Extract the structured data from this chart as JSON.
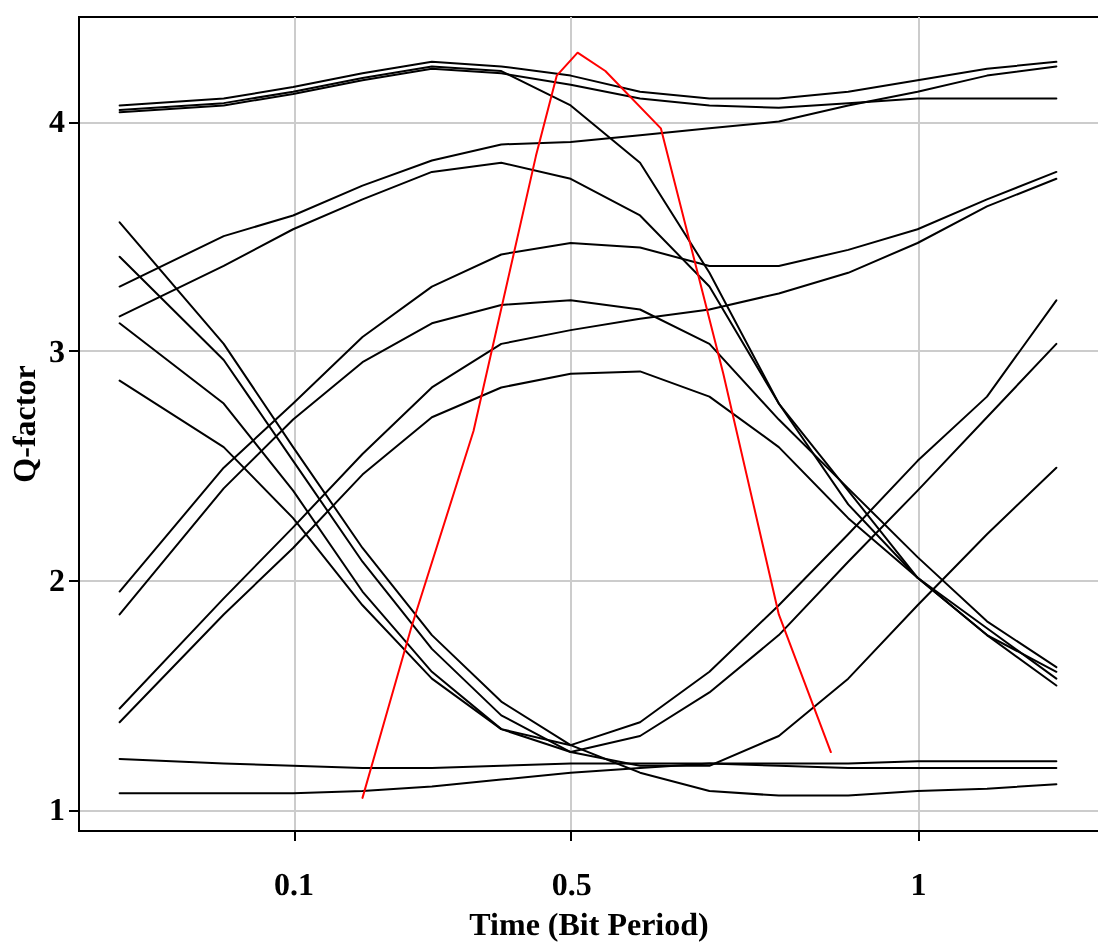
{
  "chart_data": {
    "type": "line",
    "xlabel": "Time (Bit Period)",
    "ylabel": "Q-factor",
    "x": [
      -0.15,
      0,
      0.1,
      0.2,
      0.3,
      0.4,
      0.5,
      0.6,
      0.7,
      0.8,
      0.9,
      1.0,
      1.1,
      1.2
    ],
    "xlim": [
      -0.21,
      1.26
    ],
    "xticks": [
      0.1,
      0.5,
      1
    ],
    "ylim": [
      0.91,
      4.46
    ],
    "yticks": [
      1,
      2,
      3,
      4
    ],
    "grid": true,
    "legend": false,
    "marker": "none",
    "line_style": "solid",
    "series": [
      {
        "color": "#000000",
        "values": [
          4.07,
          4.1,
          4.15,
          4.21,
          4.26,
          4.24,
          4.2,
          4.13,
          4.1,
          4.1,
          4.13,
          4.18,
          4.23,
          4.26
        ]
      },
      {
        "color": "#000000",
        "values": [
          4.04,
          4.07,
          4.12,
          4.18,
          4.23,
          4.21,
          4.16,
          4.1,
          4.07,
          4.06,
          4.08,
          4.1,
          4.1,
          4.1
        ]
      },
      {
        "color": "#000000",
        "values": [
          4.05,
          4.08,
          4.13,
          4.19,
          4.24,
          4.22,
          4.07,
          3.82,
          3.34,
          2.77,
          2.33,
          2.01,
          1.79,
          1.57
        ]
      },
      {
        "color": "#000000",
        "values": [
          3.28,
          3.5,
          3.59,
          3.72,
          3.83,
          3.9,
          3.91,
          3.94,
          3.97,
          4.0,
          4.07,
          4.13,
          4.2,
          4.24
        ]
      },
      {
        "color": "#000000",
        "values": [
          3.15,
          3.37,
          3.53,
          3.66,
          3.78,
          3.82,
          3.75,
          3.59,
          3.28,
          2.77,
          2.39,
          2.01,
          1.76,
          1.6
        ]
      },
      {
        "color": "#000000",
        "values": [
          1.95,
          2.49,
          2.77,
          3.06,
          3.28,
          3.42,
          3.47,
          3.45,
          3.37,
          3.37,
          3.44,
          3.53,
          3.66,
          3.78
        ]
      },
      {
        "color": "#000000",
        "values": [
          1.85,
          2.4,
          2.7,
          2.95,
          3.12,
          3.2,
          3.22,
          3.18,
          3.03,
          2.7,
          2.4,
          2.1,
          1.82,
          1.62
        ]
      },
      {
        "color": "#000000",
        "values": [
          1.38,
          1.85,
          2.14,
          2.46,
          2.71,
          2.84,
          2.9,
          2.91,
          2.8,
          2.58,
          2.27,
          2.01,
          1.76,
          1.54
        ]
      },
      {
        "color": "#000000",
        "values": [
          1.44,
          1.92,
          2.23,
          2.55,
          2.84,
          3.03,
          3.09,
          3.14,
          3.18,
          3.25,
          3.34,
          3.47,
          3.63,
          3.75
        ]
      },
      {
        "color": "#000000",
        "values": [
          3.56,
          3.03,
          2.58,
          2.14,
          1.76,
          1.47,
          1.28,
          1.16,
          1.08,
          1.06,
          1.06,
          1.08,
          1.09,
          1.11
        ]
      },
      {
        "color": "#000000",
        "values": [
          3.41,
          2.96,
          2.52,
          2.08,
          1.7,
          1.41,
          1.25,
          1.19,
          1.19,
          1.32,
          1.57,
          1.89,
          2.2,
          2.49
        ]
      },
      {
        "color": "#000000",
        "values": [
          2.87,
          2.58,
          2.27,
          1.89,
          1.57,
          1.35,
          1.25,
          1.32,
          1.51,
          1.76,
          2.08,
          2.39,
          2.71,
          3.03
        ]
      },
      {
        "color": "#000000",
        "values": [
          3.12,
          2.77,
          2.39,
          1.95,
          1.6,
          1.35,
          1.28,
          1.38,
          1.6,
          1.89,
          2.2,
          2.52,
          2.8,
          3.22
        ]
      },
      {
        "color": "#000000",
        "values": [
          1.22,
          1.2,
          1.19,
          1.18,
          1.18,
          1.19,
          1.2,
          1.2,
          1.2,
          1.19,
          1.18,
          1.18,
          1.18,
          1.18
        ]
      },
      {
        "color": "#000000",
        "values": [
          1.07,
          1.07,
          1.07,
          1.08,
          1.1,
          1.13,
          1.16,
          1.18,
          1.2,
          1.2,
          1.2,
          1.21,
          1.21,
          1.21
        ]
      },
      {
        "color": "#ff0000",
        "x": [
          0.2,
          0.27,
          0.36,
          0.45,
          0.48,
          0.51,
          0.55,
          0.63,
          0.72,
          0.8,
          0.875
        ],
        "values": [
          1.05,
          1.79,
          2.65,
          3.85,
          4.2,
          4.3,
          4.22,
          3.97,
          2.9,
          1.85,
          1.25
        ]
      }
    ]
  }
}
